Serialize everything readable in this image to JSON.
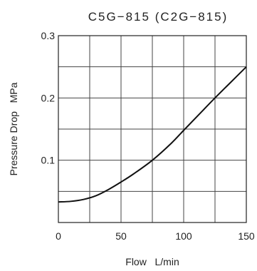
{
  "chart_data": {
    "type": "line",
    "title": "C5G−815 (C2G−815)",
    "xlabel": "Flow   L/min",
    "ylabel": "Pressure Drop   MPa",
    "xlim": [
      0,
      150
    ],
    "ylim": [
      0,
      0.3
    ],
    "x_ticks": [
      0,
      50,
      100,
      150
    ],
    "x_tick_labels": [
      "0",
      "50",
      "100",
      "150"
    ],
    "y_ticks": [
      0.1,
      0.2,
      0.3
    ],
    "y_tick_labels": [
      "0.1",
      "0.2",
      "0.3"
    ],
    "x_grid": [
      0,
      25,
      50,
      75,
      100,
      125,
      150
    ],
    "y_grid": [
      0,
      0.05,
      0.1,
      0.15,
      0.2,
      0.25,
      0.3
    ],
    "grid": true,
    "series": [
      {
        "x": [
          0,
          10,
          20,
          30,
          40,
          50,
          60,
          75,
          90,
          100,
          112,
          125,
          137,
          150
        ],
        "y": [
          0.033,
          0.034,
          0.037,
          0.043,
          0.053,
          0.065,
          0.078,
          0.1,
          0.127,
          0.148,
          0.173,
          0.2,
          0.224,
          0.25
        ],
        "color": "#111111"
      }
    ]
  }
}
